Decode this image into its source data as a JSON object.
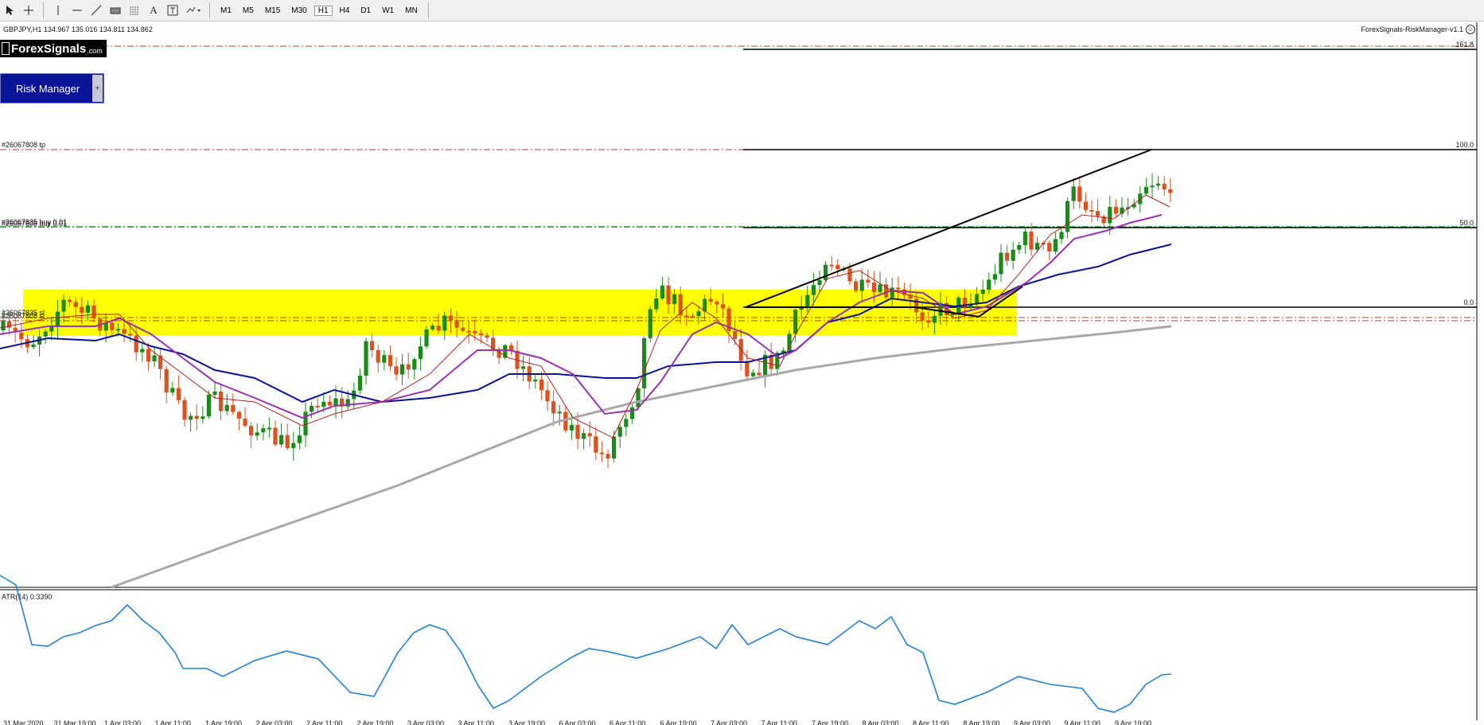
{
  "toolbar": {
    "timeframes": [
      "M1",
      "M5",
      "M15",
      "M30",
      "H1",
      "H4",
      "D1",
      "W1",
      "MN"
    ],
    "active_timeframe": "H1",
    "text_tool_label": "A"
  },
  "header": {
    "symbol_info": "GBPJPY,H1  134.967 135.016 134.811 134.862",
    "ea_name": "ForexSignals-RiskManager-v1.1",
    "ea_icon": "☺"
  },
  "logo": {
    "text": "ForexSignals",
    "domain": ".com"
  },
  "risk_manager": {
    "label": "Risk Manager",
    "plus": "+"
  },
  "levels": {
    "tp_label": "#26067808 tp",
    "buy_label": "#26067835 buy 0.01",
    "buy_label_2": "#26067808 buy 0.01",
    "sl_label": "#26067835 sl",
    "sl_label_2": "#26067808 sl"
  },
  "fib": {
    "l1618": "161.8",
    "l100": "100.0",
    "l50": "50.0",
    "l0": "0.0"
  },
  "indicator": {
    "label": "ATR(14) 0.3390"
  },
  "colors": {
    "bull": "#1a8a1a",
    "bear": "#e0501f",
    "zone": "#ffff00",
    "ma_fast": "#b22222",
    "ma_mid": "#9b30b4",
    "ma_slow": "#0a1496",
    "ma_200": "#a8a8a8",
    "atr": "#1f82d8",
    "level_red": "#c0392b",
    "level_green": "#4caf50"
  },
  "xaxis": {
    "labels": [
      "31 Mar 2020",
      "31 Mar 19:00",
      "1 Apr 03:00",
      "1 Apr 11:00",
      "1 Apr 19:00",
      "2 Apr 03:00",
      "2 Apr 11:00",
      "2 Apr 19:00",
      "3 Apr 03:00",
      "3 Apr 11:00",
      "3 Apr 19:00",
      "6 Apr 03:00",
      "6 Apr 11:00",
      "6 Apr 19:00",
      "7 Apr 03:00",
      "7 Apr 11:00",
      "7 Apr 19:00",
      "8 Apr 03:00",
      "8 Apr 11:00",
      "8 Apr 19:00",
      "9 Apr 03:00",
      "9 Apr 11:00",
      "9 Apr 19:00"
    ]
  }
}
